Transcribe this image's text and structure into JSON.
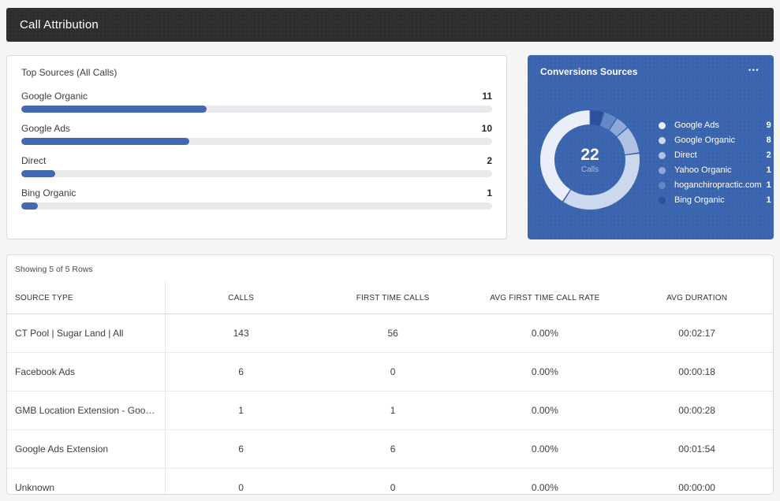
{
  "page": {
    "title": "Call Attribution"
  },
  "icons": {
    "more_options": "•••"
  },
  "conversions_center": {
    "value": "22",
    "label": "Calls"
  },
  "table": {
    "showing_text": "Showing 5 of 5 Rows",
    "columns": [
      "SOURCE TYPE",
      "CALLS",
      "FIRST TIME CALLS",
      "AVG FIRST TIME CALL RATE",
      "AVG DURATION"
    ],
    "rows": [
      [
        "CT Pool | Sugar Land | All",
        "143",
        "56",
        "0.00%",
        "00:02:17"
      ],
      [
        "Facebook Ads",
        "6",
        "0",
        "0.00%",
        "00:00:18"
      ],
      [
        "GMB Location Extension - Google…",
        "1",
        "1",
        "0.00%",
        "00:00:28"
      ],
      [
        "Google Ads Extension",
        "6",
        "6",
        "0.00%",
        "00:01:54"
      ],
      [
        "Unknown",
        "0",
        "0",
        "0.00%",
        "00:00:00"
      ]
    ]
  },
  "chart_data": [
    {
      "type": "bar",
      "title": "Top Sources (All Calls)",
      "orientation": "horizontal",
      "categories": [
        "Google Organic",
        "Google Ads",
        "Direct",
        "Bing Organic"
      ],
      "values": [
        11,
        10,
        2,
        1
      ],
      "xlim": [
        0,
        28
      ],
      "bar_color": "#4168b1",
      "track_color": "#e9eaed"
    },
    {
      "type": "pie",
      "donut": true,
      "title": "Conversions Sources",
      "center_value": 22,
      "center_label": "Calls",
      "categories": [
        "Google Ads",
        "Google Organic",
        "Direct",
        "Yahoo Organic",
        "hoganchiropractic.com",
        "Bing Organic"
      ],
      "values": [
        9,
        8,
        2,
        1,
        1,
        1
      ],
      "colors": [
        "#e9eef8",
        "#ccd8ee",
        "#afc2e4",
        "#8fa9d7",
        "#6288c7",
        "#2c5099"
      ],
      "panel_color": "#3a64ae",
      "legend_position": "right",
      "start_angle_deg": 0,
      "direction": "counterclockwise"
    }
  ]
}
